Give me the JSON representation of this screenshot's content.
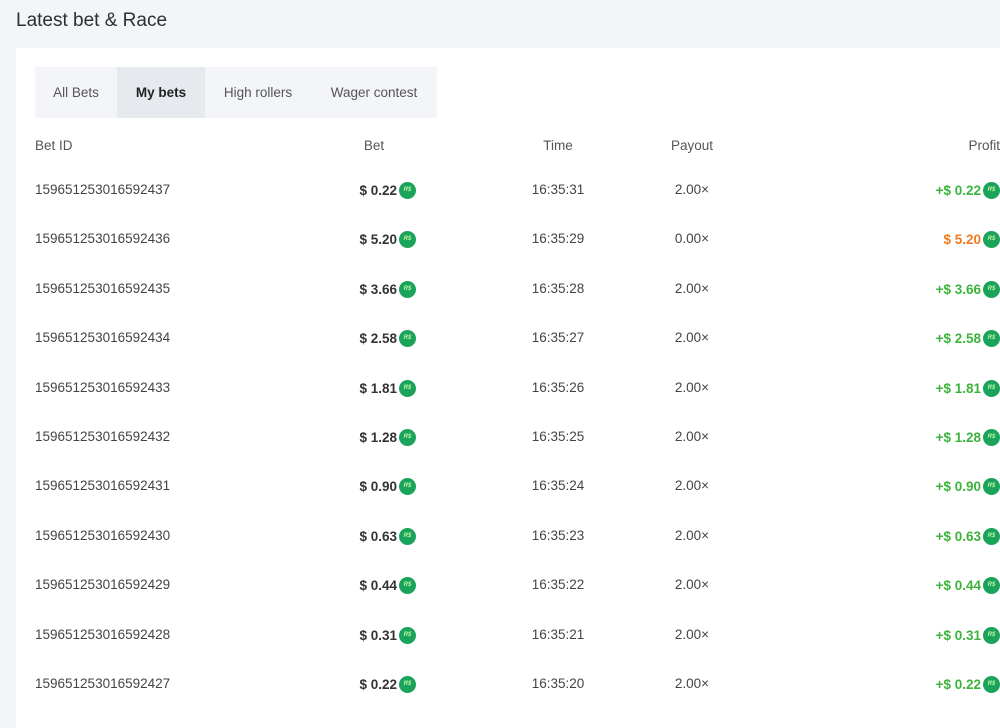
{
  "title": "Latest bet & Race",
  "tabs": [
    {
      "label": "All Bets"
    },
    {
      "label": "My bets",
      "active": true
    },
    {
      "label": "High rollers"
    },
    {
      "label": "Wager contest"
    }
  ],
  "columns": {
    "id": "Bet ID",
    "bet": "Bet",
    "time": "Time",
    "payout": "Payout",
    "profit": "Profit"
  },
  "coin_label": "R$",
  "colors": {
    "win": "#3cb43c",
    "loss": "#f07a1e",
    "coin": "#1aa35a"
  },
  "rows": [
    {
      "id": "159651253016592437",
      "bet": "$ 0.22",
      "time": "16:35:31",
      "payout": "2.00×",
      "profit": "+$ 0.22",
      "win": true
    },
    {
      "id": "159651253016592436",
      "bet": "$ 5.20",
      "time": "16:35:29",
      "payout": "0.00×",
      "profit": "$ 5.20",
      "win": false
    },
    {
      "id": "159651253016592435",
      "bet": "$ 3.66",
      "time": "16:35:28",
      "payout": "2.00×",
      "profit": "+$ 3.66",
      "win": true
    },
    {
      "id": "159651253016592434",
      "bet": "$ 2.58",
      "time": "16:35:27",
      "payout": "2.00×",
      "profit": "+$ 2.58",
      "win": true
    },
    {
      "id": "159651253016592433",
      "bet": "$ 1.81",
      "time": "16:35:26",
      "payout": "2.00×",
      "profit": "+$ 1.81",
      "win": true
    },
    {
      "id": "159651253016592432",
      "bet": "$ 1.28",
      "time": "16:35:25",
      "payout": "2.00×",
      "profit": "+$ 1.28",
      "win": true
    },
    {
      "id": "159651253016592431",
      "bet": "$ 0.90",
      "time": "16:35:24",
      "payout": "2.00×",
      "profit": "+$ 0.90",
      "win": true
    },
    {
      "id": "159651253016592430",
      "bet": "$ 0.63",
      "time": "16:35:23",
      "payout": "2.00×",
      "profit": "+$ 0.63",
      "win": true
    },
    {
      "id": "159651253016592429",
      "bet": "$ 0.44",
      "time": "16:35:22",
      "payout": "2.00×",
      "profit": "+$ 0.44",
      "win": true
    },
    {
      "id": "159651253016592428",
      "bet": "$ 0.31",
      "time": "16:35:21",
      "payout": "2.00×",
      "profit": "+$ 0.31",
      "win": true
    },
    {
      "id": "159651253016592427",
      "bet": "$ 0.22",
      "time": "16:35:20",
      "payout": "2.00×",
      "profit": "+$ 0.22",
      "win": true
    }
  ]
}
